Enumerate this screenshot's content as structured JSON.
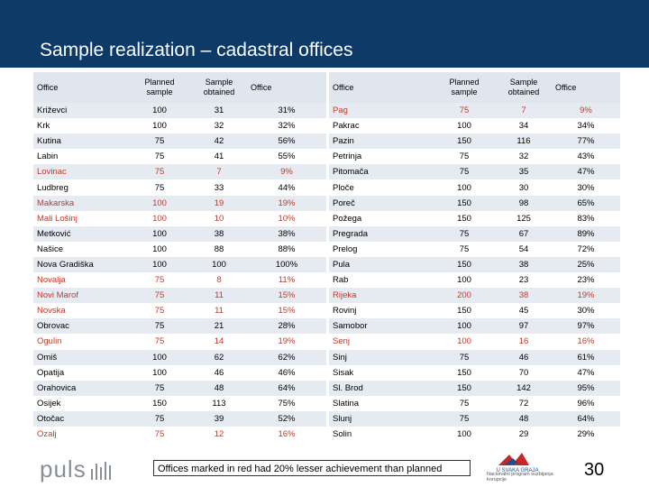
{
  "title": "Sample realization – cadastral offices",
  "headers": {
    "office": "Office",
    "planned": "Planned sample",
    "obtained": "Sample obtained",
    "pct": "Office"
  },
  "left_rows": [
    {
      "office": "Križevci",
      "planned": "100",
      "obtained": "31",
      "pct": "31%",
      "red": false
    },
    {
      "office": "Krk",
      "planned": "100",
      "obtained": "32",
      "pct": "32%",
      "red": false
    },
    {
      "office": "Kutina",
      "planned": "75",
      "obtained": "42",
      "pct": "56%",
      "red": false
    },
    {
      "office": "Labin",
      "planned": "75",
      "obtained": "41",
      "pct": "55%",
      "red": false
    },
    {
      "office": "Lovinac",
      "planned": "75",
      "obtained": "7",
      "pct": "9%",
      "red": true
    },
    {
      "office": "Ludbreg",
      "planned": "75",
      "obtained": "33",
      "pct": "44%",
      "red": false
    },
    {
      "office": "Makarska",
      "planned": "100",
      "obtained": "19",
      "pct": "19%",
      "red": true
    },
    {
      "office": "Mali Lošinj",
      "planned": "100",
      "obtained": "10",
      "pct": "10%",
      "red": true
    },
    {
      "office": "Metković",
      "planned": "100",
      "obtained": "38",
      "pct": "38%",
      "red": false
    },
    {
      "office": "Našice",
      "planned": "100",
      "obtained": "88",
      "pct": "88%",
      "red": false
    },
    {
      "office": "Nova Gradiška",
      "planned": "100",
      "obtained": "100",
      "pct": "100%",
      "red": false
    },
    {
      "office": "Novalja",
      "planned": "75",
      "obtained": "8",
      "pct": "11%",
      "red": true
    },
    {
      "office": "Novi Marof",
      "planned": "75",
      "obtained": "11",
      "pct": "15%",
      "red": true
    },
    {
      "office": "Novska",
      "planned": "75",
      "obtained": "11",
      "pct": "15%",
      "red": true
    },
    {
      "office": "Obrovac",
      "planned": "75",
      "obtained": "21",
      "pct": "28%",
      "red": false
    },
    {
      "office": "Ogulin",
      "planned": "75",
      "obtained": "14",
      "pct": "19%",
      "red": true
    },
    {
      "office": "Omiš",
      "planned": "100",
      "obtained": "62",
      "pct": "62%",
      "red": false
    },
    {
      "office": "Opatija",
      "planned": "100",
      "obtained": "46",
      "pct": "46%",
      "red": false
    },
    {
      "office": "Orahovica",
      "planned": "75",
      "obtained": "48",
      "pct": "64%",
      "red": false
    },
    {
      "office": "Osijek",
      "planned": "150",
      "obtained": "113",
      "pct": "75%",
      "red": false
    },
    {
      "office": "Otočac",
      "planned": "75",
      "obtained": "39",
      "pct": "52%",
      "red": false
    },
    {
      "office": "Ozalj",
      "planned": "75",
      "obtained": "12",
      "pct": "16%",
      "red": true
    }
  ],
  "right_rows": [
    {
      "office": "Pag",
      "planned": "75",
      "obtained": "7",
      "pct": "9%",
      "red": true
    },
    {
      "office": "Pakrac",
      "planned": "100",
      "obtained": "34",
      "pct": "34%",
      "red": false
    },
    {
      "office": "Pazin",
      "planned": "150",
      "obtained": "116",
      "pct": "77%",
      "red": false
    },
    {
      "office": "Petrinja",
      "planned": "75",
      "obtained": "32",
      "pct": "43%",
      "red": false
    },
    {
      "office": "Pitomača",
      "planned": "75",
      "obtained": "35",
      "pct": "47%",
      "red": false
    },
    {
      "office": "Ploče",
      "planned": "100",
      "obtained": "30",
      "pct": "30%",
      "red": false
    },
    {
      "office": "Poreč",
      "planned": "150",
      "obtained": "98",
      "pct": "65%",
      "red": false
    },
    {
      "office": "Požega",
      "planned": "150",
      "obtained": "125",
      "pct": "83%",
      "red": false
    },
    {
      "office": "Pregrada",
      "planned": "75",
      "obtained": "67",
      "pct": "89%",
      "red": false
    },
    {
      "office": "Prelog",
      "planned": "75",
      "obtained": "54",
      "pct": "72%",
      "red": false
    },
    {
      "office": "Pula",
      "planned": "150",
      "obtained": "38",
      "pct": "25%",
      "red": false
    },
    {
      "office": "Rab",
      "planned": "100",
      "obtained": "23",
      "pct": "23%",
      "red": false
    },
    {
      "office": "Rijeka",
      "planned": "200",
      "obtained": "38",
      "pct": "19%",
      "red": true
    },
    {
      "office": "Rovinj",
      "planned": "150",
      "obtained": "45",
      "pct": "30%",
      "red": false
    },
    {
      "office": "Samobor",
      "planned": "100",
      "obtained": "97",
      "pct": "97%",
      "red": false
    },
    {
      "office": "Senj",
      "planned": "100",
      "obtained": "16",
      "pct": "16%",
      "red": true
    },
    {
      "office": "Sinj",
      "planned": "75",
      "obtained": "46",
      "pct": "61%",
      "red": false
    },
    {
      "office": "Sisak",
      "planned": "150",
      "obtained": "70",
      "pct": "47%",
      "red": false
    },
    {
      "office": "Sl. Brod",
      "planned": "150",
      "obtained": "142",
      "pct": "95%",
      "red": false
    },
    {
      "office": "Slatina",
      "planned": "75",
      "obtained": "72",
      "pct": "96%",
      "red": false
    },
    {
      "office": "Slunj",
      "planned": "75",
      "obtained": "48",
      "pct": "64%",
      "red": false
    },
    {
      "office": "Solin",
      "planned": "100",
      "obtained": "29",
      "pct": "29%",
      "red": false
    }
  ],
  "note": "Offices marked in red had 20% lesser achievement than planned",
  "logo": "puls",
  "sponsor_name": "U SVAKA GRAJA",
  "sponsor_text": "Nacionalni program suzbijanja korupcije",
  "page_number": "30",
  "colors": {
    "header": "#0d3a66",
    "red": "#c0392b",
    "row_stripe": "#e6ebf1"
  }
}
